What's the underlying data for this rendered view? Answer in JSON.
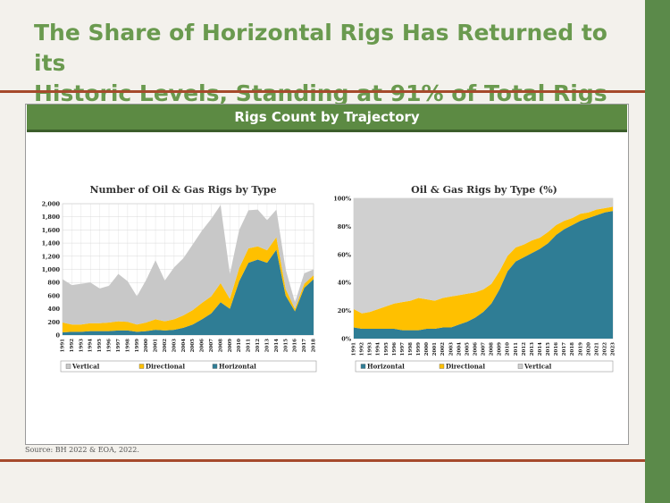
{
  "slide": {
    "title_line1": "The Share of Horizontal Rigs Has Returned to its",
    "title_line2": "Historic Levels, Standing at 91% of Total Rigs",
    "section_header": "Rigs Count by Trajectory",
    "source": "Source: BH 2022 & EOA, 2022.",
    "colors": {
      "accent_green": "#5c8a43",
      "rule_red": "#a64a2c",
      "title_green": "#6a9a4f"
    }
  },
  "chart_data": [
    {
      "type": "area",
      "stacked": true,
      "title": "Number of Oil & Gas Rigs by Type",
      "x": [
        1991,
        1992,
        1993,
        1994,
        1995,
        1996,
        1997,
        1998,
        1999,
        2000,
        2001,
        2002,
        2003,
        2004,
        2005,
        2006,
        2007,
        2008,
        2009,
        2010,
        2011,
        2012,
        2013,
        2014,
        2015,
        2016,
        2017,
        2018
      ],
      "x_tick_labels": [
        "1991",
        "1992",
        "1993",
        "1994",
        "1995",
        "1996",
        "1997",
        "1998",
        "1999",
        "2000",
        "2001",
        "2002",
        "2003",
        "2004",
        "2005",
        "2006",
        "2007",
        "2008",
        "2009",
        "2010",
        "2011",
        "2012",
        "2013",
        "2014",
        "2015",
        "2016",
        "2017",
        "2018"
      ],
      "ylim": [
        0,
        2000
      ],
      "y_ticks": [
        0,
        200,
        400,
        600,
        800,
        1000,
        1200,
        1400,
        1600,
        1800,
        2000
      ],
      "y_tick_labels": [
        "0",
        "200",
        "400",
        "600",
        "800",
        "1,000",
        "1,200",
        "1,400",
        "1,600",
        "1,800",
        "2,000"
      ],
      "grid": true,
      "legend_position": "bottom",
      "series": [
        {
          "name": "Horizontal",
          "color": "#2f7d95",
          "values": [
            40,
            50,
            50,
            60,
            60,
            60,
            70,
            70,
            50,
            60,
            80,
            70,
            80,
            110,
            160,
            240,
            330,
            500,
            400,
            820,
            1100,
            1150,
            1100,
            1300,
            600,
            360,
            720,
            850
          ]
        },
        {
          "name": "Directional",
          "color": "#ffc000",
          "values": [
            150,
            110,
            110,
            120,
            120,
            130,
            140,
            130,
            110,
            130,
            160,
            140,
            160,
            190,
            220,
            250,
            260,
            290,
            150,
            200,
            220,
            200,
            190,
            190,
            100,
            40,
            60,
            60
          ]
        },
        {
          "name": "Vertical",
          "color": "#c8c8c8",
          "values": [
            660,
            600,
            620,
            620,
            530,
            560,
            720,
            620,
            430,
            650,
            900,
            620,
            790,
            870,
            1000,
            1100,
            1180,
            1190,
            380,
            580,
            580,
            560,
            460,
            420,
            300,
            100,
            160,
            90
          ]
        }
      ]
    },
    {
      "type": "area",
      "stacked": true,
      "title": "Oil & Gas Rigs by Type (%)",
      "x": [
        1991,
        1992,
        1993,
        1994,
        1995,
        1996,
        1997,
        1998,
        1999,
        2000,
        2001,
        2002,
        2003,
        2004,
        2005,
        2006,
        2007,
        2008,
        2009,
        2010,
        2011,
        2012,
        2013,
        2014,
        2015,
        2016,
        2017,
        2018,
        2019,
        2020,
        2021,
        2022,
        2023
      ],
      "x_tick_labels": [
        "1991",
        "1992",
        "1993",
        "1994",
        "1995",
        "1996",
        "1997",
        "1998",
        "1999",
        "2000",
        "2001",
        "2002",
        "2003",
        "2004",
        "2005",
        "2006",
        "2007",
        "2008",
        "2009",
        "2010",
        "2011",
        "2012",
        "2013",
        "2014",
        "2015",
        "2016",
        "2017",
        "2018",
        "2019",
        "2020",
        "2021",
        "2022",
        "2023"
      ],
      "ylim": [
        0,
        100
      ],
      "y_ticks": [
        0,
        20,
        40,
        60,
        80,
        100
      ],
      "y_tick_labels": [
        "0%",
        "20%",
        "40%",
        "60%",
        "80%",
        "100%"
      ],
      "grid": true,
      "legend_position": "bottom",
      "series": [
        {
          "name": "Horizontal",
          "color": "#2f7d95",
          "values": [
            8,
            7,
            7,
            7,
            7,
            7,
            6,
            6,
            6,
            7,
            7,
            8,
            8,
            10,
            12,
            15,
            19,
            25,
            35,
            48,
            55,
            58,
            61,
            64,
            68,
            74,
            78,
            81,
            84,
            86,
            88,
            90,
            91
          ]
        },
        {
          "name": "Directional",
          "color": "#ffc000",
          "values": [
            13,
            11,
            12,
            14,
            16,
            18,
            20,
            21,
            23,
            21,
            20,
            21,
            22,
            21,
            20,
            18,
            16,
            14,
            13,
            11,
            10,
            9,
            9,
            8,
            8,
            7,
            6,
            5,
            5,
            4,
            4,
            3,
            3
          ]
        },
        {
          "name": "Vertical",
          "color": "#d0d0d0",
          "values": [
            79,
            82,
            81,
            79,
            77,
            75,
            74,
            73,
            71,
            72,
            73,
            71,
            70,
            69,
            68,
            67,
            65,
            61,
            52,
            41,
            35,
            33,
            30,
            28,
            24,
            19,
            16,
            14,
            11,
            10,
            8,
            7,
            6
          ]
        }
      ]
    }
  ]
}
